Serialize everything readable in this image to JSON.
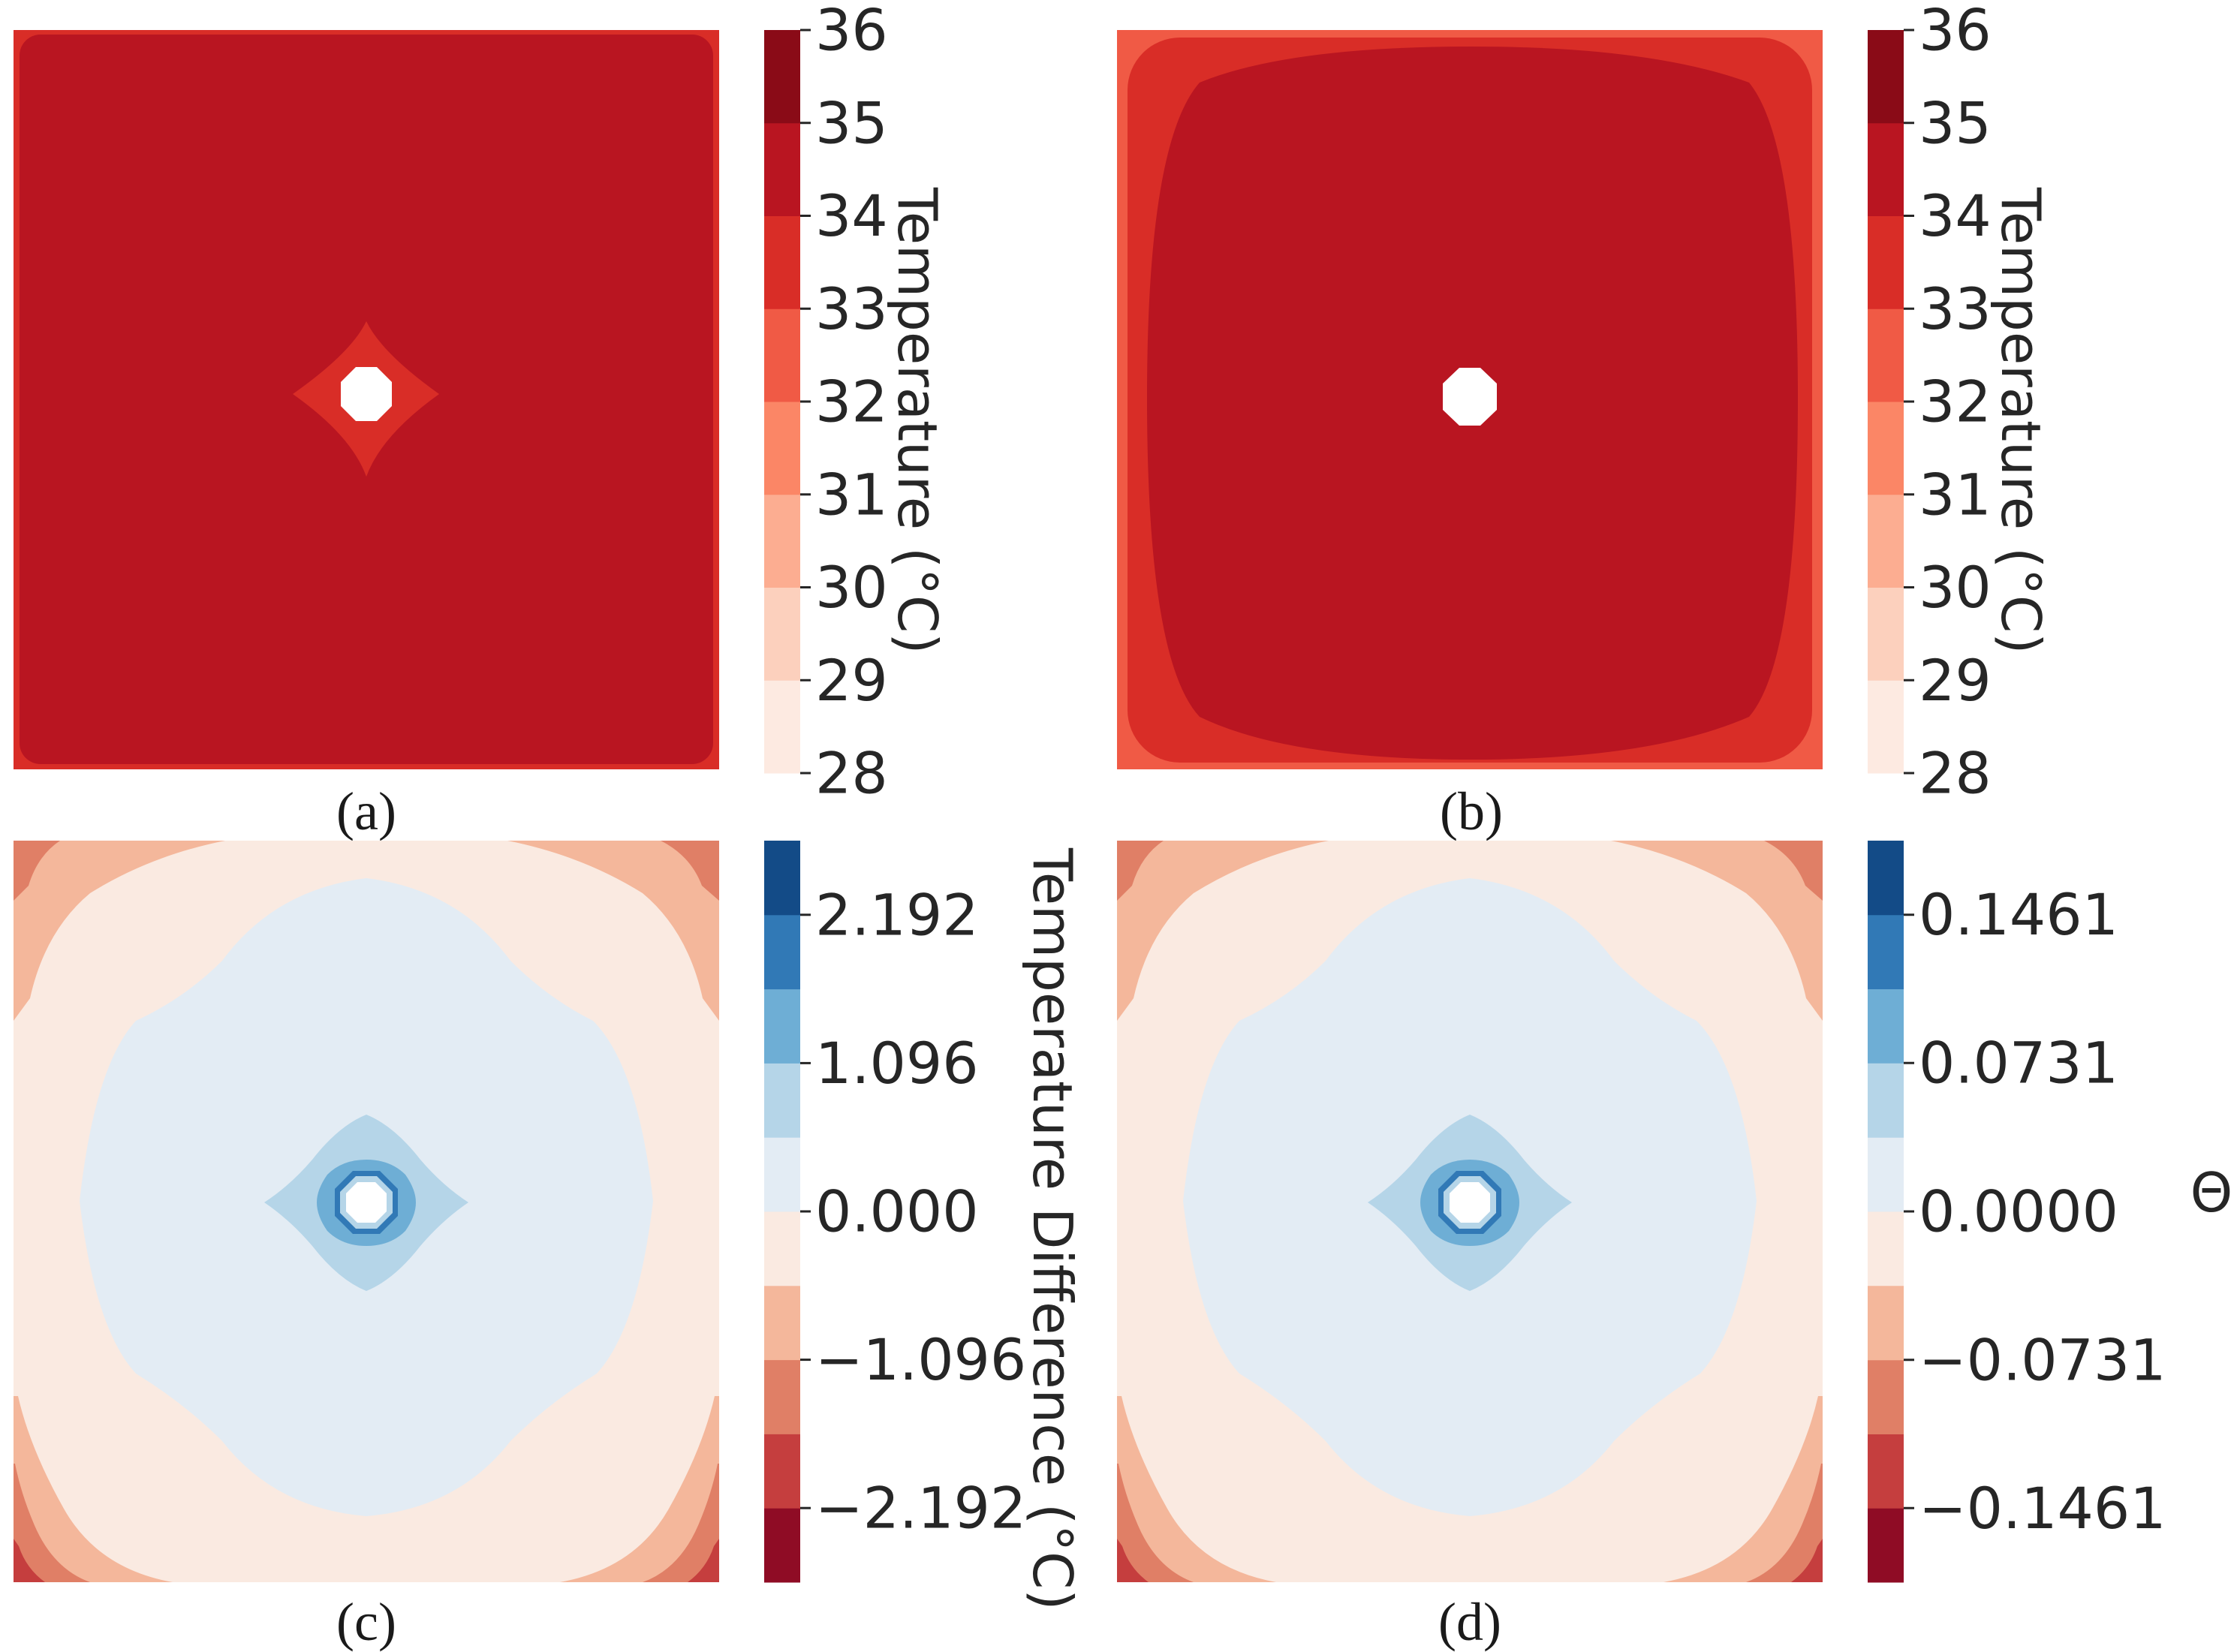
{
  "chart_data": [
    {
      "type": "heatmap",
      "caption": "(a)",
      "colorbar": {
        "label": "Temperature (°C)",
        "ticks": [
          "28",
          "29",
          "30",
          "31",
          "32",
          "33",
          "34",
          "35",
          "36"
        ],
        "levels": [
          28,
          29,
          30,
          31,
          32,
          33,
          34,
          35,
          36
        ],
        "colors": [
          "#fdeae1",
          "#fcd0bd",
          "#fcad91",
          "#fb8666",
          "#f05a45",
          "#d92d27",
          "#b91521",
          "#8a0b17"
        ]
      },
      "field": {
        "background_level": [
          34,
          35
        ],
        "edge_level": [
          33,
          34
        ],
        "hole_ring_level": [
          33,
          34
        ],
        "hole": "octagon"
      }
    },
    {
      "type": "heatmap",
      "caption": "(b)",
      "colorbar": {
        "label": "Temperature (°C)",
        "ticks": [
          "28",
          "29",
          "30",
          "31",
          "32",
          "33",
          "34",
          "35",
          "36"
        ],
        "levels": [
          28,
          29,
          30,
          31,
          32,
          33,
          34,
          35,
          36
        ],
        "colors": [
          "#fdeae1",
          "#fcd0bd",
          "#fcad91",
          "#fb8666",
          "#f05a45",
          "#d92d27",
          "#b91521",
          "#8a0b17"
        ]
      },
      "field": {
        "background_level": [
          34,
          35
        ],
        "border_levels": [
          [
            32,
            33
          ],
          [
            33,
            34
          ]
        ],
        "hole": "octagon"
      }
    },
    {
      "type": "heatmap",
      "caption": "(c)",
      "colorbar": {
        "label": "Temperature Difference (°C)",
        "ticks": [
          "−2.192",
          "−1.096",
          "0.000",
          "1.096",
          "2.192"
        ],
        "tick_values": [
          -2.192,
          -1.096,
          0.0,
          1.096,
          2.192
        ],
        "levels": [
          -2.74,
          -2.192,
          -1.644,
          -1.096,
          -0.548,
          0.0,
          0.548,
          1.096,
          1.644,
          2.192,
          2.74
        ],
        "colors": [
          "#8f0c25",
          "#c53e3e",
          "#e07f66",
          "#f4b79b",
          "#faeae1",
          "#e3ecf4",
          "#b5d5e8",
          "#6eaed5",
          "#3179b6",
          "#134b87"
        ]
      }
    },
    {
      "type": "heatmap",
      "caption": "(d)",
      "colorbar": {
        "label": "Θ",
        "ticks": [
          "−0.1461",
          "−0.0731",
          "0.0000",
          "0.0731",
          "0.1461"
        ],
        "tick_values": [
          -0.1461,
          -0.0731,
          0.0,
          0.0731,
          0.1461
        ],
        "levels": [
          -0.1826,
          -0.1461,
          -0.1096,
          -0.0731,
          -0.0365,
          0.0,
          0.0365,
          0.0731,
          0.1096,
          0.1461,
          0.1826
        ],
        "colors": [
          "#8f0c25",
          "#c53e3e",
          "#e07f66",
          "#f4b79b",
          "#faeae1",
          "#e3ecf4",
          "#b5d5e8",
          "#6eaed5",
          "#3179b6",
          "#134b87"
        ]
      }
    }
  ]
}
